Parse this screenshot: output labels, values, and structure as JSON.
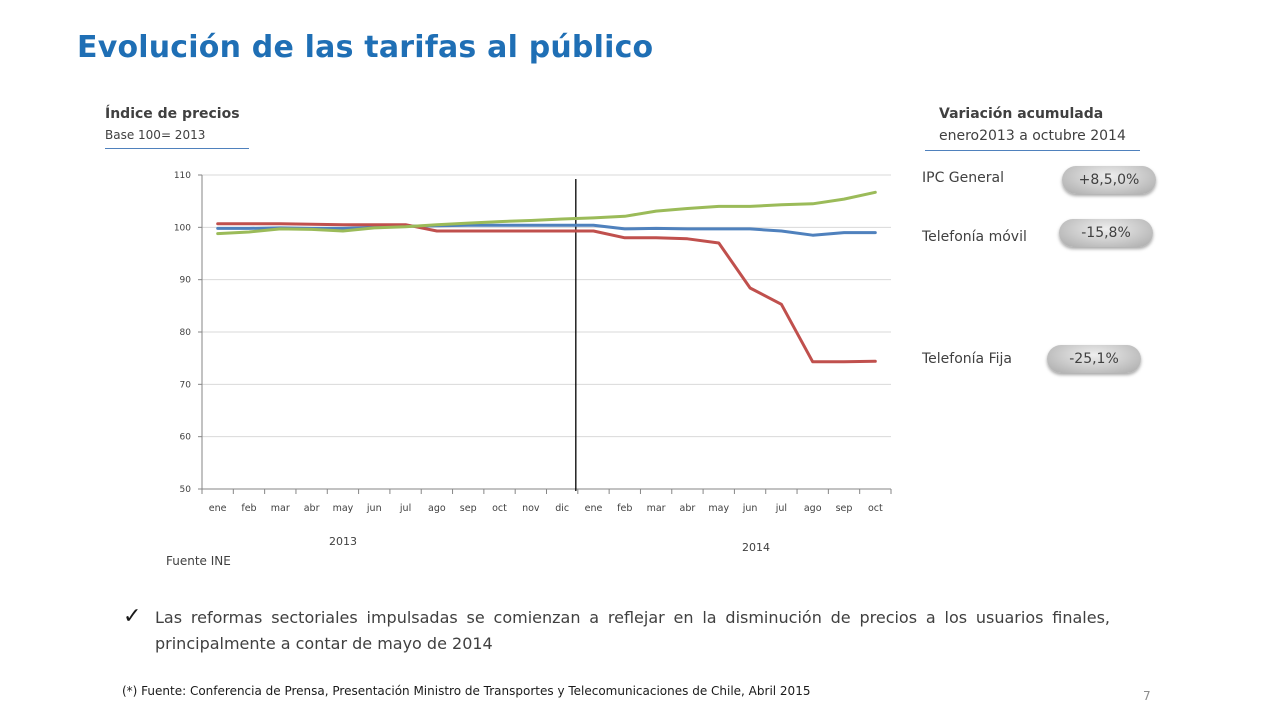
{
  "title": "Evolución de las tarifas al público",
  "left_header": {
    "title": "Índice de precios",
    "subtitle": "Base 100= 2013"
  },
  "right_header": {
    "title": "Variación acumulada",
    "subtitle": "enero2013 a octubre 2014"
  },
  "variations": [
    {
      "label": "IPC General",
      "value": "+8,5,0%"
    },
    {
      "label": "Telefonía móvil",
      "value": "-15,8%"
    },
    {
      "label": "Telefonía Fija",
      "value": "-25,1%"
    }
  ],
  "chart_data": {
    "type": "line",
    "categories": [
      "ene",
      "feb",
      "mar",
      "abr",
      "may",
      "jun",
      "jul",
      "ago",
      "sep",
      "oct",
      "nov",
      "dic",
      "ene",
      "feb",
      "mar",
      "abr",
      "may",
      "jun",
      "jul",
      "ago",
      "sep",
      "oct"
    ],
    "year_labels": [
      "2013",
      "2014"
    ],
    "ylim": [
      50,
      110
    ],
    "yticks": [
      50,
      60,
      70,
      80,
      90,
      100,
      110
    ],
    "divider_after_index": 11,
    "series": [
      {
        "color": "#4f81bd",
        "values": [
          99.8,
          99.8,
          99.9,
          99.8,
          99.8,
          100.0,
          100.2,
          100.3,
          100.4,
          100.4,
          100.4,
          100.4,
          100.4,
          99.7,
          99.8,
          99.7,
          99.7,
          99.7,
          99.3,
          98.5,
          99.0,
          99.0
        ]
      },
      {
        "color": "#c0504d",
        "values": [
          100.7,
          100.7,
          100.7,
          100.6,
          100.5,
          100.5,
          100.5,
          99.3,
          99.3,
          99.3,
          99.3,
          99.3,
          99.3,
          98.0,
          98.0,
          97.8,
          97.0,
          88.4,
          85.3,
          74.3,
          74.3,
          74.4
        ]
      },
      {
        "color": "#9bbb59",
        "values": [
          98.8,
          99.1,
          99.7,
          99.6,
          99.3,
          99.9,
          100.1,
          100.5,
          100.8,
          101.1,
          101.3,
          101.6,
          101.8,
          102.1,
          103.1,
          103.6,
          104.0,
          104.0,
          104.3,
          104.5,
          105.4,
          106.7
        ]
      }
    ]
  },
  "source_note": "Fuente INE",
  "bullet": "Las reformas sectoriales impulsadas se comienzan a reflejar en la disminución de precios a los usuarios finales, principalmente a contar de mayo de 2014",
  "footnote": "(*) Fuente: Conferencia de Prensa, Presentación Ministro de Transportes y Telecomunicaciones de Chile, Abril 2015",
  "page_number": "7"
}
